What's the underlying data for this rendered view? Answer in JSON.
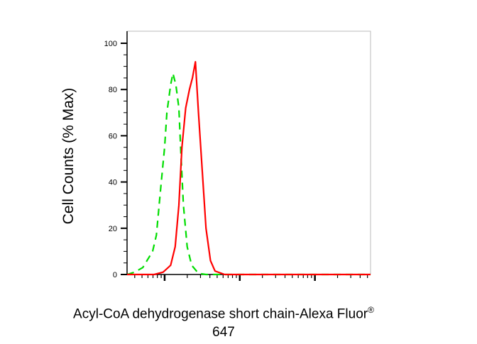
{
  "chart_data": {
    "type": "line",
    "title": "",
    "ylabel": "Cell Counts (% Max)",
    "xlabel_line1": "Acyl-CoA dehydrogenase short chain-Alexa Fluor",
    "xlabel_reg": "®",
    "xlabel_line2": "647",
    "x_scale": "log",
    "x_decades": [
      0.5,
      3.74
    ],
    "ylim": [
      0,
      100
    ],
    "yticks": [
      0,
      20,
      40,
      60,
      80,
      100
    ],
    "grid": false,
    "legend": "none",
    "series": [
      {
        "color": "#00dd00",
        "style": "dashed",
        "x": [
          0.5,
          0.6,
          0.71,
          0.84,
          0.89,
          0.95,
          1.0,
          1.03,
          1.08,
          1.11,
          1.15,
          1.19,
          1.22,
          1.25,
          1.3,
          1.36,
          1.45,
          1.55,
          3.74
        ],
        "y": [
          0,
          1,
          3,
          10,
          17,
          38,
          55,
          70,
          82,
          87,
          82,
          72,
          50,
          30,
          12,
          4,
          0.5,
          0,
          0
        ]
      },
      {
        "color": "#ff0000",
        "style": "solid",
        "x": [
          0.5,
          0.86,
          0.98,
          1.08,
          1.14,
          1.19,
          1.23,
          1.28,
          1.33,
          1.37,
          1.41,
          1.45,
          1.5,
          1.55,
          1.61,
          1.67,
          1.8,
          3.74
        ],
        "y": [
          0,
          0,
          1,
          4,
          12,
          30,
          55,
          72,
          80,
          85,
          92,
          70,
          45,
          20,
          6,
          1.5,
          0,
          0
        ]
      }
    ]
  }
}
